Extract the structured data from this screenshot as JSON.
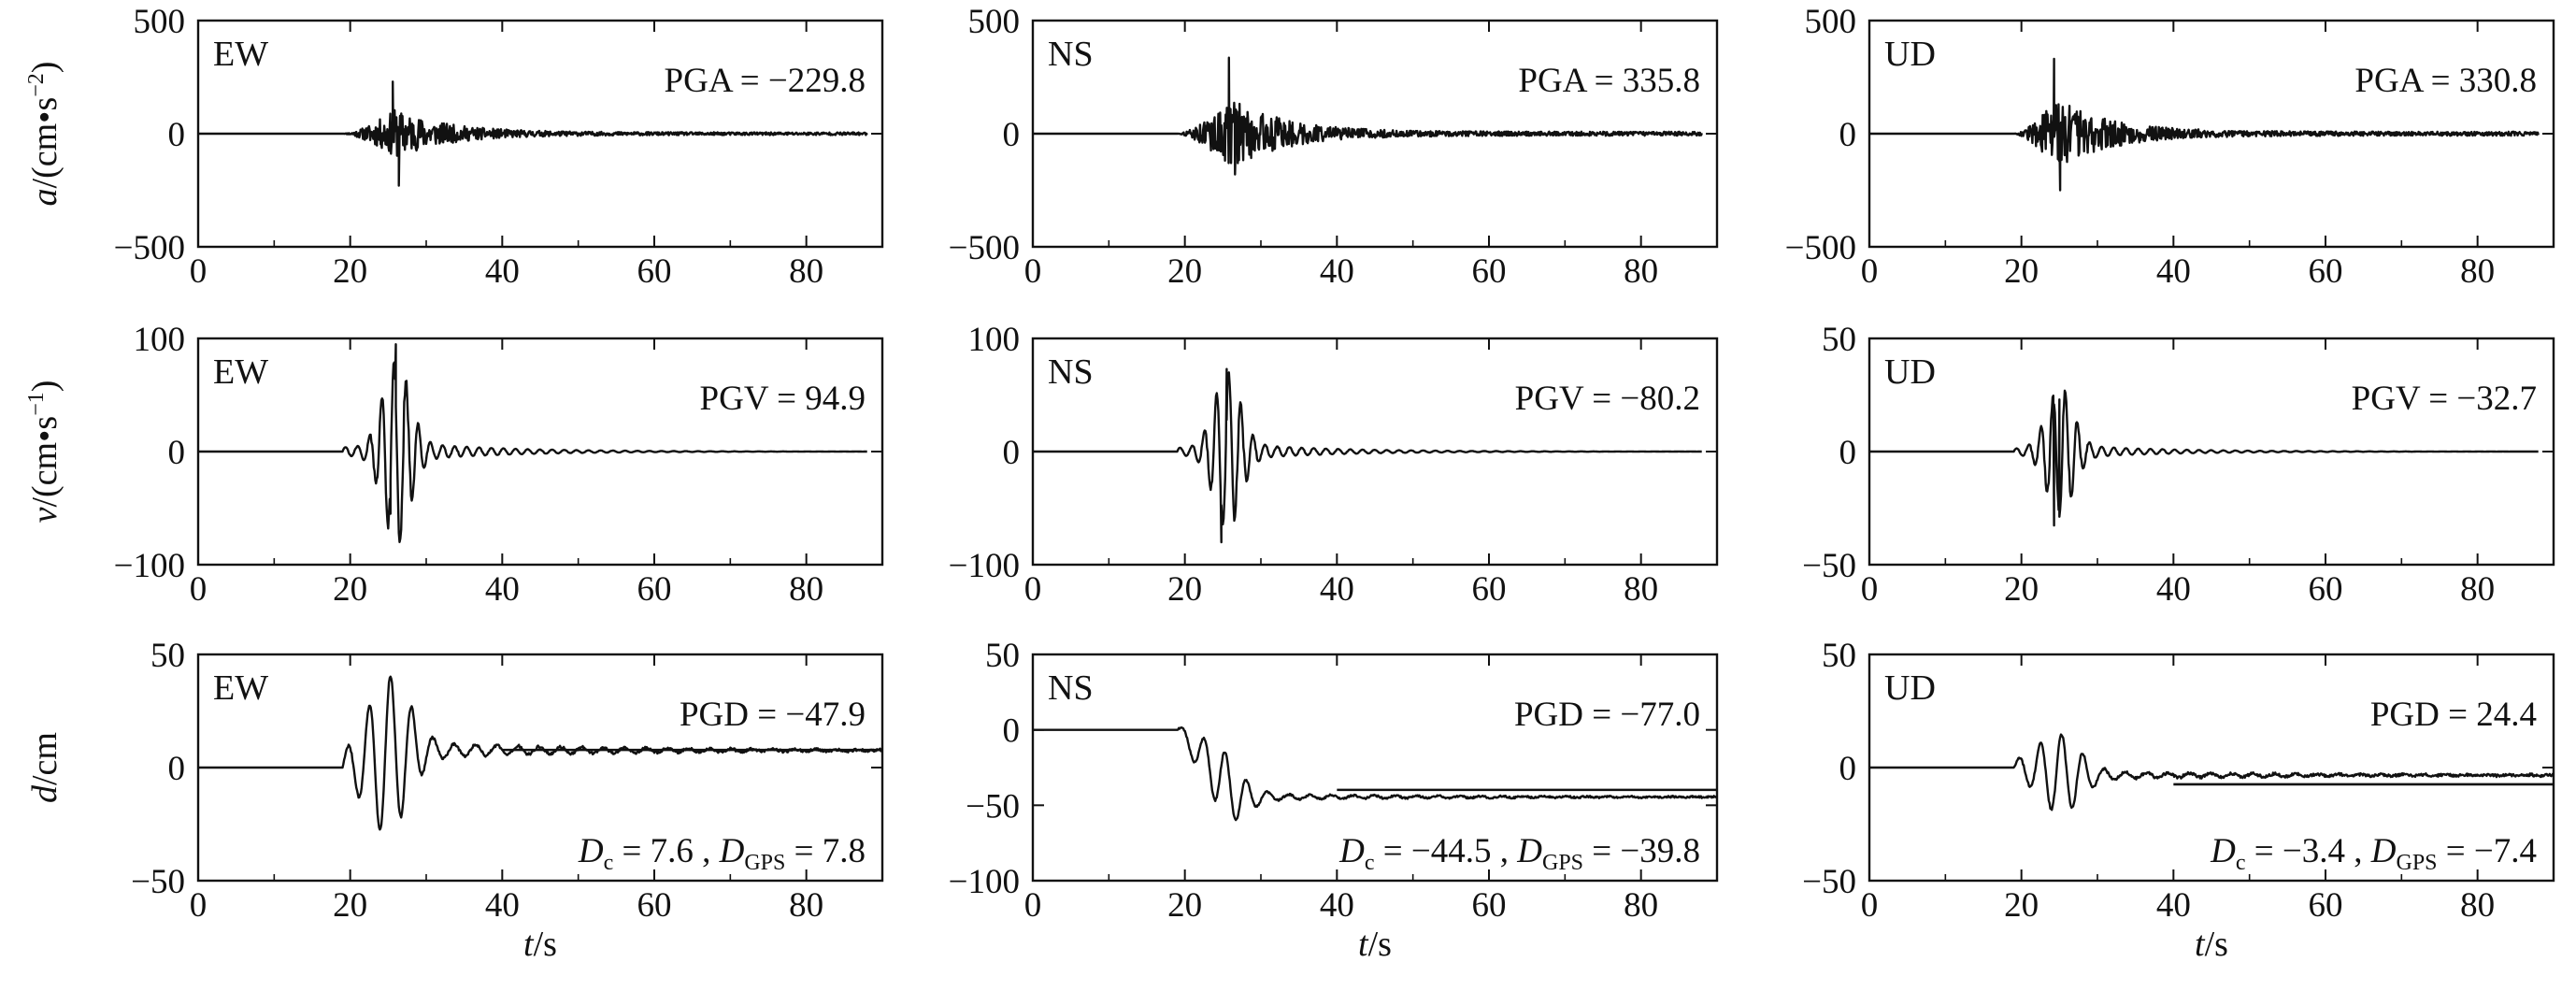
{
  "chart_data": [
    {
      "type": "line",
      "quantity": "acceleration",
      "component": "EW",
      "title": "EW",
      "ylabel_main": "a",
      "ylabel_unit_prefix": "/(cm",
      "ylabel_unit_s": "s",
      "ylabel_unit_exp": "−2",
      "ylabel_close": ")",
      "annotation": "PGA = −229.8",
      "peak": -229.8,
      "positive_peak": 230,
      "onset": 19,
      "peak_time": 25.8,
      "xlim": [
        0,
        90
      ],
      "ylim": [
        -500,
        500
      ],
      "xticks": [
        "0",
        "20",
        "40",
        "60",
        "80"
      ],
      "yticks": [
        "−500",
        "0",
        "500"
      ]
    },
    {
      "type": "line",
      "quantity": "acceleration",
      "component": "NS",
      "title": "NS",
      "annotation": "PGA = 335.8",
      "peak": 335.8,
      "negative_peak": -180,
      "onset": 19,
      "peak_time": 26,
      "xlim": [
        0,
        90
      ],
      "ylim": [
        -500,
        500
      ],
      "xticks": [
        "0",
        "20",
        "40",
        "60",
        "80"
      ],
      "yticks": [
        "−500",
        "0",
        "500"
      ]
    },
    {
      "type": "line",
      "quantity": "acceleration",
      "component": "UD",
      "title": "UD",
      "annotation": "PGA = 330.8",
      "peak": 330.8,
      "negative_peak": -250,
      "onset": 19,
      "peak_time": 24.5,
      "xlim": [
        0,
        90
      ],
      "ylim": [
        -500,
        500
      ],
      "xticks": [
        "0",
        "20",
        "40",
        "60",
        "80"
      ],
      "yticks": [
        "−500",
        "0",
        "500"
      ]
    },
    {
      "type": "line",
      "quantity": "velocity",
      "component": "EW",
      "title": "EW",
      "ylabel_main": "v",
      "ylabel_unit_prefix": "/(cm",
      "ylabel_unit_s": "s",
      "ylabel_unit_exp": "−1",
      "ylabel_close": ")",
      "annotation": "PGV = 94.9",
      "peak": 94.9,
      "negative_peak": -55,
      "onset": 19,
      "peak_time": 26,
      "xlim": [
        0,
        90
      ],
      "ylim": [
        -100,
        100
      ],
      "xticks": [
        "0",
        "20",
        "40",
        "60",
        "80"
      ],
      "yticks": [
        "−100",
        "0",
        "100"
      ]
    },
    {
      "type": "line",
      "quantity": "velocity",
      "component": "NS",
      "title": "NS",
      "annotation": "PGV = −80.2",
      "peak": -80.2,
      "positive_peak": 73,
      "onset": 19,
      "peak_time": 25.5,
      "xlim": [
        0,
        90
      ],
      "ylim": [
        -100,
        100
      ],
      "xticks": [
        "0",
        "20",
        "40",
        "60",
        "80"
      ],
      "yticks": [
        "−100",
        "0",
        "100"
      ]
    },
    {
      "type": "line",
      "quantity": "velocity",
      "component": "UD",
      "title": "UD",
      "annotation": "PGV = −32.7",
      "peak": -32.7,
      "positive_peak": 23,
      "onset": 19,
      "peak_time": 25,
      "xlim": [
        0,
        90
      ],
      "ylim": [
        -50,
        50
      ],
      "xticks": [
        "0",
        "20",
        "40",
        "60",
        "80"
      ],
      "yticks": [
        "−50",
        "0",
        "50"
      ]
    },
    {
      "type": "line",
      "quantity": "displacement",
      "component": "EW",
      "title": "EW",
      "ylabel_main": "d",
      "ylabel_unit_prefix": "/cm",
      "xlabel_main": "t",
      "xlabel_unit": "/s",
      "annotation": "PGD = −47.9",
      "peak": -47.9,
      "positive_peak": 45,
      "offset": 7.6,
      "gps_offset": 7.8,
      "dc_label": "D",
      "dc_sub": "c",
      "dc_text": " = 7.6 , ",
      "dgps_label": "D",
      "dgps_sub": "GPS",
      "dgps_text": " = 7.8",
      "onset": 19,
      "xlim": [
        0,
        90
      ],
      "ylim": [
        -50,
        50
      ],
      "xticks": [
        "0",
        "20",
        "40",
        "60",
        "80"
      ],
      "yticks": [
        "−50",
        "0",
        "50"
      ]
    },
    {
      "type": "line",
      "quantity": "displacement",
      "component": "NS",
      "title": "NS",
      "xlabel_main": "t",
      "xlabel_unit": "/s",
      "annotation": "PGD = −77.0",
      "peak": -77.0,
      "offset": -44.5,
      "gps_offset": -39.8,
      "dc_label": "D",
      "dc_sub": "c",
      "dc_text": " = −44.5 , ",
      "dgps_label": "D",
      "dgps_sub": "GPS",
      "dgps_text": " = −39.8",
      "onset": 19,
      "xlim": [
        0,
        90
      ],
      "ylim": [
        -100,
        50
      ],
      "xticks": [
        "0",
        "20",
        "40",
        "60",
        "80"
      ],
      "yticks": [
        "−100",
        "−50",
        "0",
        "50"
      ]
    },
    {
      "type": "line",
      "quantity": "displacement",
      "component": "UD",
      "title": "UD",
      "xlabel_main": "t",
      "xlabel_unit": "/s",
      "annotation": "PGD = 24.4",
      "peak": 24.4,
      "negative_peak": -13,
      "offset": -3.4,
      "gps_offset": -7.4,
      "dc_label": "D",
      "dc_sub": "c",
      "dc_text": " = −3.4 , ",
      "dgps_label": "D",
      "dgps_sub": "GPS",
      "dgps_text": " = −7.4",
      "onset": 19,
      "xlim": [
        0,
        90
      ],
      "ylim": [
        -50,
        50
      ],
      "xticks": [
        "0",
        "20",
        "40",
        "60",
        "80"
      ],
      "yticks": [
        "−50",
        "0",
        "50"
      ]
    }
  ]
}
